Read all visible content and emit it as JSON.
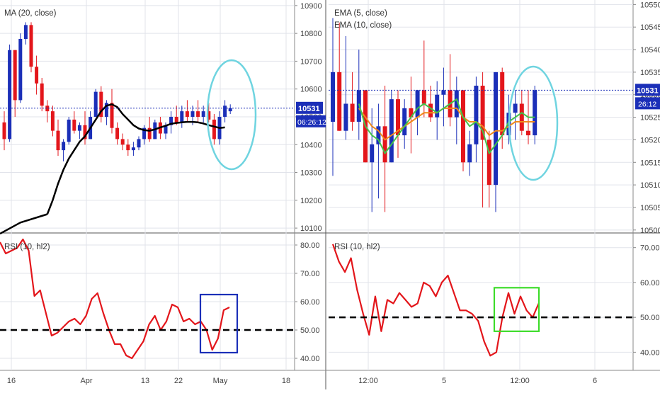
{
  "colors": {
    "up_candle": "#1b2fb8",
    "down_candle": "#e3161b",
    "ma_line": "#000000",
    "ema_fast": "#42c24a",
    "ema_slow": "#f08a1c",
    "rsi_line": "#e3161b",
    "price_line": "#1b2fb8",
    "price_badge": "#1b2fb8",
    "highlight_ellipse": "#6fd4e0",
    "highlight_box_left": "#1b2fb8",
    "highlight_box_right": "#3ddc2a",
    "grid": "#e1e3ea"
  },
  "left_panel": {
    "price_chart": {
      "legend": "MA (20, close)",
      "y_ticks": [
        "10900",
        "10800",
        "10700",
        "10600",
        "10500",
        "10400",
        "10300",
        "10200",
        "10100"
      ],
      "y_range": [
        10085,
        10920
      ],
      "last_price": "10531",
      "countdown": "06:26:12",
      "highlight": "ellipse-around-last-candles"
    },
    "rsi_chart": {
      "legend": "RSI (10, hl2)",
      "y_ticks": [
        "80.00",
        "70.00",
        "60.00",
        "50.00",
        "40.00"
      ],
      "y_range": [
        36,
        84
      ],
      "midline": 50,
      "highlight": "box-around-last-dip"
    },
    "x_ticks": [
      "16",
      "Apr",
      "13",
      "22",
      "May",
      "18"
    ]
  },
  "right_panel": {
    "price_chart": {
      "legend": [
        "EMA (5, close)",
        "EMA (10, close)"
      ],
      "y_ticks": [
        "10550",
        "10545",
        "10540",
        "10535",
        "10530",
        "10525",
        "10520",
        "10515",
        "10510",
        "10505",
        "10500"
      ],
      "y_range": [
        10499.5,
        10551
      ],
      "last_price": "10531",
      "countdown": "26:12",
      "highlight": "ellipse-around-last-candles"
    },
    "rsi_chart": {
      "legend": "RSI (10, hl2)",
      "y_ticks": [
        "70.00",
        "60.00",
        "50.00",
        "40.00"
      ],
      "y_range": [
        35,
        74
      ],
      "midline": 50,
      "highlight": "box-around-last-swing"
    },
    "x_ticks": [
      "12:00",
      "5",
      "12:00",
      "6"
    ]
  },
  "chart_data": [
    {
      "type": "candlestick",
      "title": "MA (20, close)",
      "y_range": [
        10085,
        10920
      ],
      "candles_ohlc": [
        [
          10480,
          10520,
          10380,
          10420
        ],
        [
          10420,
          10760,
          10410,
          10740
        ],
        [
          10740,
          10740,
          10500,
          10560
        ],
        [
          10560,
          10800,
          10550,
          10780
        ],
        [
          10780,
          10840,
          10760,
          10830
        ],
        [
          10830,
          10840,
          10660,
          10680
        ],
        [
          10680,
          10720,
          10580,
          10620
        ],
        [
          10620,
          10640,
          10520,
          10540
        ],
        [
          10540,
          10560,
          10480,
          10520
        ],
        [
          10520,
          10540,
          10430,
          10450
        ],
        [
          10450,
          10490,
          10360,
          10380
        ],
        [
          10380,
          10420,
          10340,
          10410
        ],
        [
          10410,
          10500,
          10400,
          10490
        ],
        [
          10490,
          10520,
          10440,
          10450
        ],
        [
          10450,
          10480,
          10420,
          10470
        ],
        [
          10470,
          10520,
          10400,
          10420
        ],
        [
          10420,
          10520,
          10420,
          10500
        ],
        [
          10500,
          10600,
          10500,
          10590
        ],
        [
          10590,
          10610,
          10480,
          10500
        ],
        [
          10500,
          10560,
          10470,
          10550
        ],
        [
          10550,
          10600,
          10440,
          10460
        ],
        [
          10460,
          10480,
          10400,
          10420
        ],
        [
          10420,
          10440,
          10380,
          10400
        ],
        [
          10400,
          10420,
          10360,
          10380
        ],
        [
          10380,
          10410,
          10360,
          10390
        ],
        [
          10390,
          10430,
          10380,
          10420
        ],
        [
          10420,
          10470,
          10400,
          10460
        ],
        [
          10460,
          10500,
          10410,
          10420
        ],
        [
          10420,
          10490,
          10420,
          10480
        ],
        [
          10480,
          10500,
          10420,
          10440
        ],
        [
          10440,
          10480,
          10420,
          10470
        ],
        [
          10470,
          10520,
          10440,
          10500
        ],
        [
          10500,
          10540,
          10470,
          10480
        ],
        [
          10480,
          10540,
          10460,
          10520
        ],
        [
          10520,
          10560,
          10480,
          10500
        ],
        [
          10500,
          10540,
          10470,
          10520
        ],
        [
          10520,
          10560,
          10480,
          10500
        ],
        [
          10500,
          10540,
          10480,
          10520
        ],
        [
          10520,
          10550,
          10480,
          10490
        ],
        [
          10490,
          10510,
          10400,
          10420
        ],
        [
          10420,
          10520,
          10400,
          10500
        ],
        [
          10500,
          10560,
          10480,
          10540
        ],
        [
          10520,
          10545,
          10510,
          10531
        ]
      ],
      "ma_20": [
        [
          8,
          10150
        ],
        [
          9,
          10200
        ],
        [
          10,
          10260
        ],
        [
          11,
          10310
        ],
        [
          12,
          10350
        ],
        [
          13,
          10380
        ],
        [
          14,
          10410
        ],
        [
          15,
          10430
        ],
        [
          16,
          10460
        ],
        [
          17,
          10490
        ],
        [
          18,
          10520
        ],
        [
          19,
          10540
        ],
        [
          20,
          10545
        ],
        [
          21,
          10535
        ],
        [
          22,
          10510
        ],
        [
          23,
          10490
        ],
        [
          24,
          10470
        ],
        [
          25,
          10458
        ],
        [
          26,
          10452
        ],
        [
          27,
          10450
        ],
        [
          28,
          10455
        ],
        [
          29,
          10462
        ],
        [
          30,
          10468
        ],
        [
          31,
          10475
        ],
        [
          32,
          10478
        ],
        [
          33,
          10480
        ],
        [
          34,
          10482
        ],
        [
          35,
          10482
        ],
        [
          36,
          10480
        ],
        [
          37,
          10476
        ],
        [
          38,
          10470
        ],
        [
          39,
          10465
        ],
        [
          40,
          10460
        ],
        [
          41,
          10462
        ]
      ]
    },
    {
      "type": "line",
      "title": "RSI (10, hl2)",
      "y_range": [
        36,
        84
      ],
      "midline": 50,
      "values": [
        81,
        77,
        78,
        79,
        82,
        78,
        62,
        64,
        56,
        48,
        49,
        51,
        53,
        54,
        52,
        55,
        61,
        63,
        56,
        50,
        45,
        45,
        41,
        40,
        43,
        46,
        52,
        55,
        50,
        53,
        59,
        58,
        53,
        54,
        52,
        53,
        50,
        43,
        47,
        57,
        58
      ]
    },
    {
      "type": "candlestick",
      "title": "EMA (5, close) / EMA (10, close)",
      "y_range": [
        10499.5,
        10551
      ],
      "candles_ohlc": [
        [
          10524,
          10547,
          10512,
          10535
        ],
        [
          10535,
          10546,
          10522,
          10522
        ],
        [
          10522,
          10543,
          10520,
          10528
        ],
        [
          10528,
          10535,
          10522,
          10524
        ],
        [
          10524,
          10540,
          10520,
          10531
        ],
        [
          10531,
          10531,
          10515,
          10515
        ],
        [
          10515,
          10527,
          10504,
          10519
        ],
        [
          10519,
          10528,
          10507,
          10523
        ],
        [
          10523,
          10532,
          10504,
          10515
        ],
        [
          10515,
          10531,
          10515,
          10529
        ],
        [
          10529,
          10531,
          10516,
          10521
        ],
        [
          10521,
          10529,
          10518,
          10527
        ],
        [
          10527,
          10534,
          10517,
          10525
        ],
        [
          10525,
          10531,
          10521,
          10531
        ],
        [
          10531,
          10542,
          10525,
          10528
        ],
        [
          10528,
          10532,
          10524,
          10525
        ],
        [
          10525,
          10533,
          10520,
          10530
        ],
        [
          10530,
          10536,
          10523,
          10531
        ],
        [
          10531,
          10539,
          10523,
          10525
        ],
        [
          10525,
          10534,
          10519,
          10531
        ],
        [
          10531,
          10531,
          10513,
          10515
        ],
        [
          10515,
          10522,
          10512,
          10519
        ],
        [
          10519,
          10534,
          10515,
          10532
        ],
        [
          10532,
          10535,
          10505,
          10520
        ],
        [
          10520,
          10522,
          10505,
          10510
        ],
        [
          10510,
          10535,
          10504,
          10535
        ],
        [
          10535,
          10536,
          10518,
          10521
        ],
        [
          10521,
          10530,
          10519,
          10526
        ],
        [
          10526,
          10531,
          10520,
          10528
        ],
        [
          10528,
          10531,
          10521,
          10522
        ],
        [
          10522,
          10531,
          10519,
          10521
        ],
        [
          10521,
          10532,
          10519,
          10531
        ]
      ],
      "ema_5": [
        [
          4,
          10528
        ],
        [
          5,
          10523
        ],
        [
          6,
          10521
        ],
        [
          7,
          10520
        ],
        [
          8,
          10517
        ],
        [
          9,
          10519
        ],
        [
          10,
          10521
        ],
        [
          11,
          10523
        ],
        [
          12,
          10525
        ],
        [
          13,
          10527
        ],
        [
          14,
          10528
        ],
        [
          15,
          10527
        ],
        [
          16,
          10526
        ],
        [
          17,
          10527
        ],
        [
          18,
          10528
        ],
        [
          19,
          10529
        ],
        [
          20,
          10525
        ],
        [
          21,
          10523
        ],
        [
          22,
          10524
        ],
        [
          23,
          10522
        ],
        [
          24,
          10517
        ],
        [
          25,
          10519
        ],
        [
          26,
          10521
        ],
        [
          27,
          10524
        ],
        [
          28,
          10525
        ],
        [
          29,
          10526
        ],
        [
          30,
          10525
        ],
        [
          31,
          10525
        ]
      ],
      "ema_10": [
        [
          4,
          10527
        ],
        [
          5,
          10525
        ],
        [
          6,
          10523
        ],
        [
          7,
          10522
        ],
        [
          8,
          10520
        ],
        [
          9,
          10521
        ],
        [
          10,
          10522
        ],
        [
          11,
          10523
        ],
        [
          12,
          10524
        ],
        [
          13,
          10525
        ],
        [
          14,
          10526
        ],
        [
          15,
          10526
        ],
        [
          16,
          10526
        ],
        [
          17,
          10527
        ],
        [
          18,
          10527
        ],
        [
          19,
          10527
        ],
        [
          20,
          10525
        ],
        [
          21,
          10524
        ],
        [
          22,
          10524
        ],
        [
          23,
          10523
        ],
        [
          24,
          10521
        ],
        [
          25,
          10522
        ],
        [
          26,
          10522
        ],
        [
          27,
          10523
        ],
        [
          28,
          10524
        ],
        [
          29,
          10524
        ],
        [
          30,
          10524
        ],
        [
          31,
          10524
        ]
      ]
    },
    {
      "type": "line",
      "title": "RSI (10, hl2)",
      "y_range": [
        35,
        74
      ],
      "midline": 50,
      "values": [
        71,
        66,
        63,
        67,
        58,
        51,
        45,
        56,
        46,
        55,
        54,
        57,
        55,
        53,
        54,
        60,
        59,
        56,
        60,
        62,
        57,
        52,
        52,
        51,
        49,
        43,
        39,
        40,
        50,
        57,
        51,
        56,
        52,
        50,
        54
      ]
    }
  ]
}
